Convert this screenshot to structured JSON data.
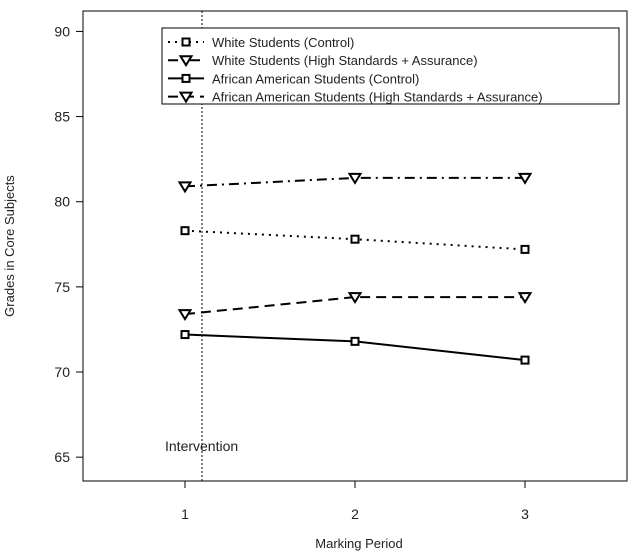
{
  "chart_data": {
    "type": "line",
    "title": "",
    "xlabel": "Marking Period",
    "ylabel": "Grades in Core Subjects",
    "x": [
      1,
      2,
      3
    ],
    "xlim": [
      0.4,
      3.6
    ],
    "ylim": [
      63.6,
      91.2
    ],
    "x_ticks": [
      1,
      2,
      3
    ],
    "y_ticks": [
      65,
      70,
      75,
      80,
      85,
      90
    ],
    "grid": false,
    "legend_position": "top-right",
    "series": [
      {
        "name": "White Students (Control)",
        "values": [
          78.3,
          77.8,
          77.2
        ],
        "line_style": "dotted",
        "marker": "square"
      },
      {
        "name": "White Students (High Standards + Assurance)",
        "values": [
          80.9,
          81.4,
          81.4
        ],
        "line_style": "dash-dot",
        "marker": "triangle-down"
      },
      {
        "name": "African American Students (Control)",
        "values": [
          72.2,
          71.8,
          70.7
        ],
        "line_style": "solid",
        "marker": "square"
      },
      {
        "name": "African American Students (High Standards + Assurance)",
        "values": [
          73.4,
          74.4,
          74.4
        ],
        "line_style": "dashed",
        "marker": "triangle-down"
      }
    ],
    "annotations": [
      {
        "text": "Intervention",
        "x": 1.1,
        "style": "vertical-dotted-line"
      }
    ]
  }
}
